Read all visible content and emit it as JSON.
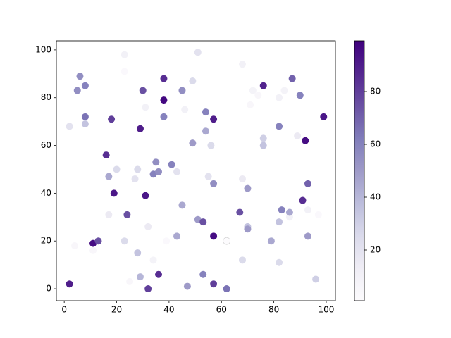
{
  "chart_data": {
    "type": "scatter",
    "x": [
      2,
      2,
      6,
      5,
      8,
      8,
      8,
      4,
      11,
      11,
      13,
      18,
      16,
      17,
      20,
      19,
      17,
      23,
      23,
      24,
      23,
      25,
      28,
      27,
      29,
      30,
      31,
      28,
      29,
      31,
      32,
      32,
      34,
      34,
      35,
      36,
      36,
      38,
      38,
      38,
      39,
      41,
      43,
      43,
      45,
      46,
      45,
      47,
      49,
      49,
      51,
      51,
      53,
      53,
      54,
      54,
      55,
      56,
      57,
      57,
      57,
      57,
      62,
      62,
      68,
      68,
      67,
      68,
      70,
      70,
      70,
      71,
      72,
      74,
      76,
      76,
      76,
      79,
      82,
      82,
      82,
      82,
      83,
      84,
      86,
      86,
      87,
      89,
      90,
      91,
      92,
      93,
      93,
      93,
      97,
      96,
      99
    ],
    "values": [
      2,
      68,
      89,
      83,
      85,
      72,
      69,
      18,
      19,
      16,
      20,
      71,
      56,
      47,
      50,
      40,
      31,
      98,
      91,
      31,
      20,
      3,
      50,
      46,
      67,
      83,
      76,
      15,
      5,
      39,
      26,
      0,
      12,
      48,
      53,
      49,
      6,
      79,
      88,
      72,
      20,
      52,
      49,
      22,
      83,
      75,
      35,
      1,
      87,
      61,
      99,
      29,
      28,
      6,
      74,
      66,
      47,
      60,
      71,
      44,
      22,
      2,
      20,
      0,
      94,
      46,
      32,
      12,
      42,
      26,
      25,
      77,
      83,
      81,
      85,
      63,
      60,
      20,
      80,
      68,
      28,
      11,
      33,
      83,
      30,
      32,
      88,
      64,
      81,
      37,
      62,
      44,
      33,
      22,
      31,
      4,
      72
    ],
    "color_values": [
      90,
      20,
      55,
      55,
      60,
      65,
      35,
      5,
      95,
      5,
      75,
      80,
      85,
      45,
      25,
      92,
      15,
      10,
      3,
      75,
      25,
      5,
      25,
      20,
      90,
      75,
      10,
      35,
      40,
      92,
      15,
      80,
      8,
      60,
      55,
      55,
      85,
      97,
      85,
      60,
      3,
      60,
      20,
      45,
      55,
      10,
      45,
      50,
      25,
      50,
      20,
      50,
      75,
      60,
      60,
      45,
      20,
      25,
      90,
      55,
      95,
      80,
      1,
      65,
      10,
      15,
      75,
      25,
      50,
      35,
      50,
      5,
      8,
      5,
      88,
      30,
      35,
      45,
      10,
      60,
      35,
      25,
      60,
      8,
      10,
      45,
      70,
      15,
      60,
      85,
      95,
      70,
      10,
      50,
      3,
      30,
      92
    ],
    "colormap": "Purples",
    "xlim": [
      -3,
      103.5
    ],
    "ylim": [
      -5,
      103.8
    ],
    "clim": [
      0.8,
      99.2
    ],
    "xticks": [
      0,
      20,
      40,
      60,
      80,
      100
    ],
    "yticks": [
      0,
      20,
      40,
      60,
      80,
      100
    ],
    "cticks": [
      20,
      40,
      60,
      80
    ]
  }
}
